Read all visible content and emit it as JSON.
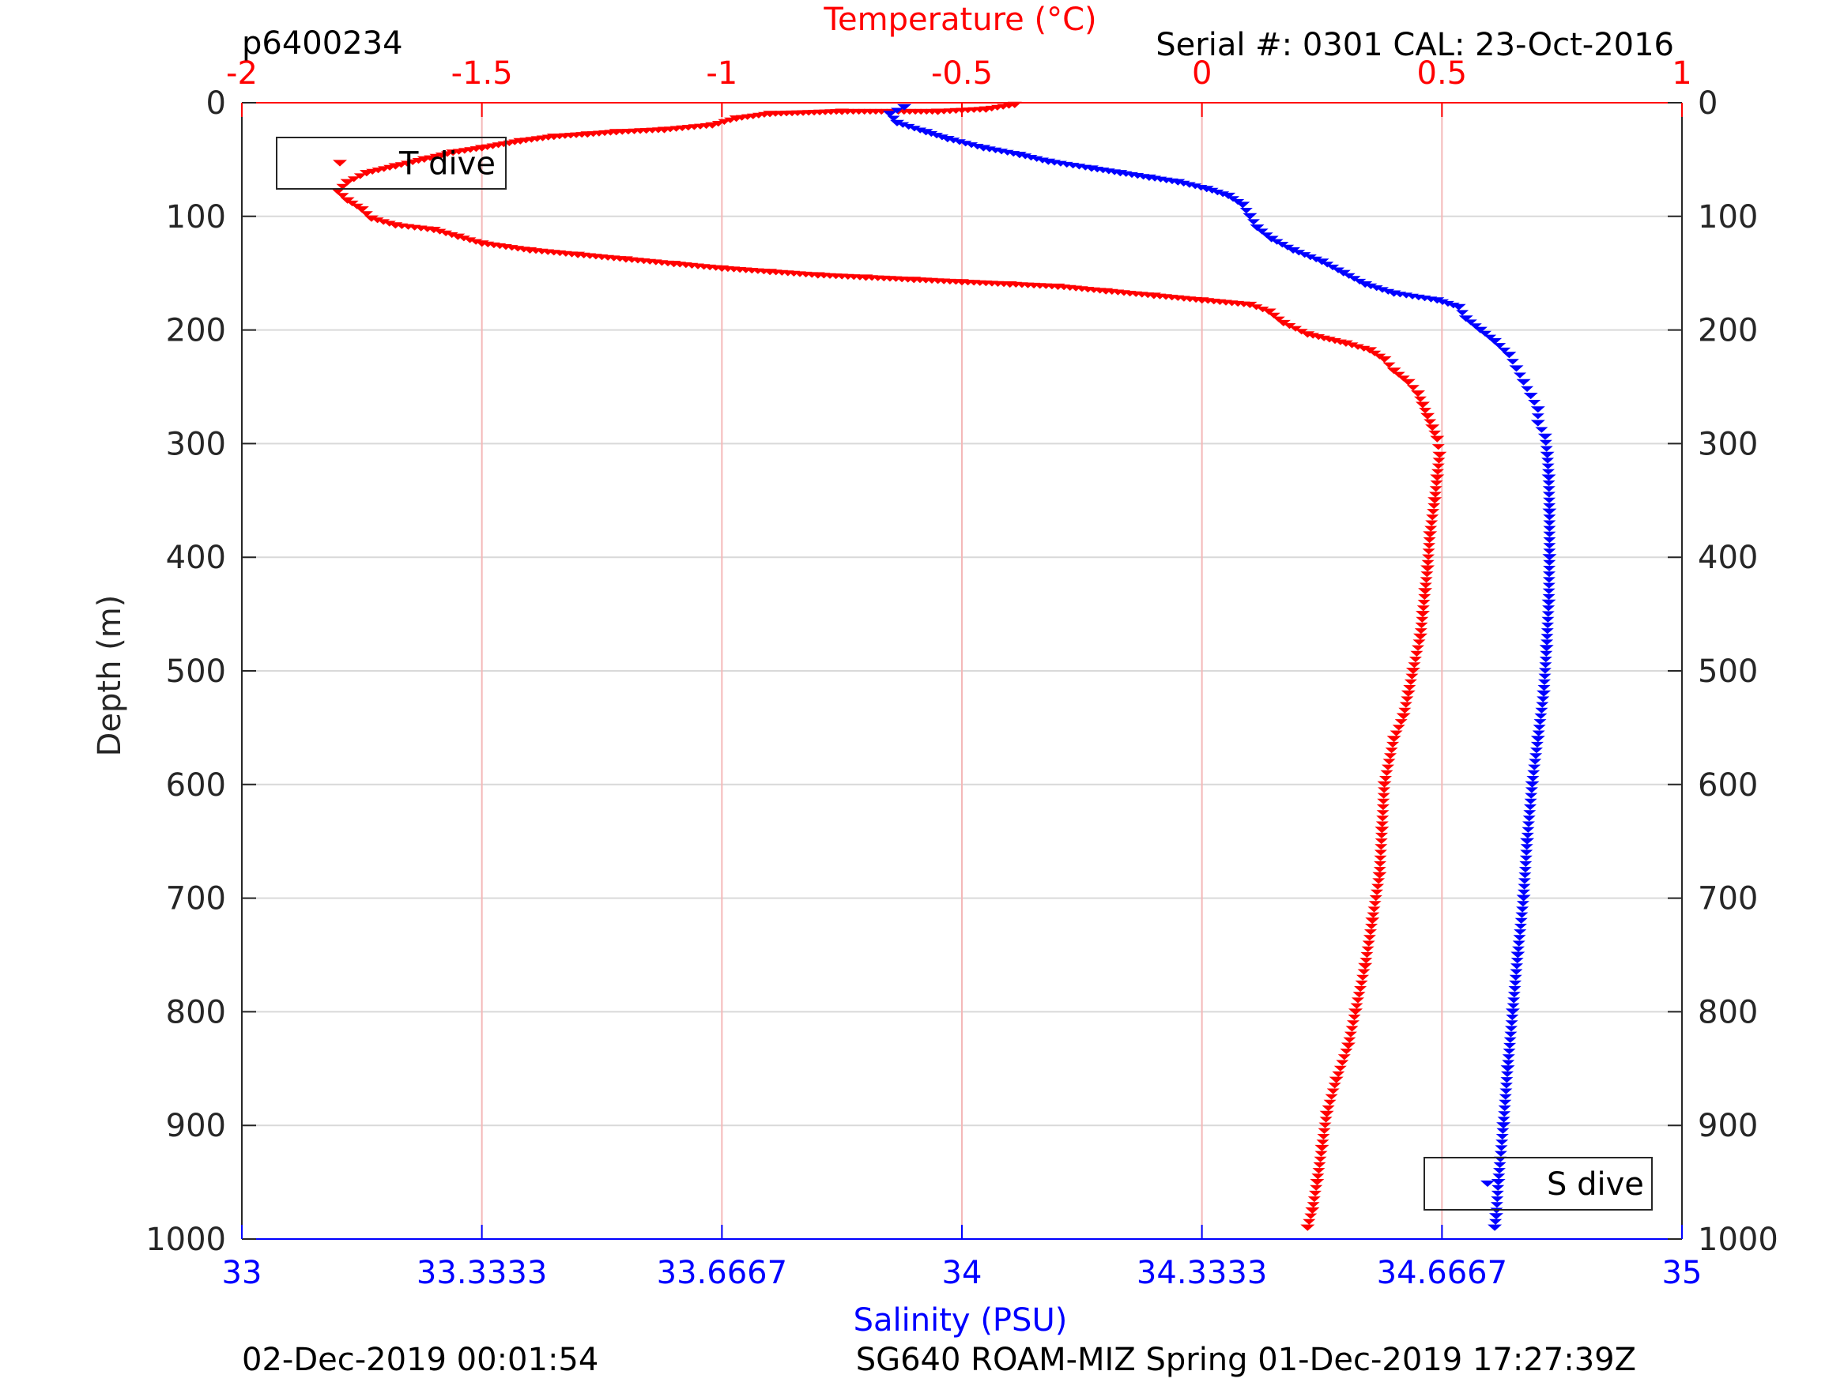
{
  "header": {
    "left_id": "p6400234",
    "right_info": "Serial #: 0301  CAL: 23-Oct-2016"
  },
  "footer": {
    "left_timestamp": "02-Dec-2019 00:01:54",
    "right_mission": "SG640 ROAM-MIZ Spring 01-Dec-2019 17:27:39Z"
  },
  "colors": {
    "temperature": "#ff0000",
    "salinity": "#0000ff",
    "axes": "#262626",
    "grid": "#d9d9d9",
    "grid_top": "#f4b8b8"
  },
  "chart_data": {
    "type": "scatter",
    "marker": "downward-triangle",
    "grid": true,
    "y_axis": {
      "label": "Depth (m)",
      "lim": [
        0,
        1000
      ],
      "reversed": true,
      "ticks": [
        0,
        100,
        200,
        300,
        400,
        500,
        600,
        700,
        800,
        900,
        1000
      ],
      "tick_labels": [
        "0",
        "100",
        "200",
        "300",
        "400",
        "500",
        "600",
        "700",
        "800",
        "900",
        "1000"
      ]
    },
    "x_axis_top": {
      "label": "Temperature (°C)",
      "lim": [
        -2,
        1
      ],
      "ticks": [
        -2,
        -1.5,
        -1,
        -0.5,
        0,
        0.5,
        1
      ],
      "tick_labels": [
        "-2",
        "-1.5",
        "-1",
        "-0.5",
        "0",
        "0.5",
        "1"
      ]
    },
    "x_axis_bottom": {
      "label": "Salinity (PSU)",
      "lim": [
        33,
        35
      ],
      "ticks": [
        33,
        33.3333,
        33.6667,
        34,
        34.3333,
        34.6667,
        35
      ],
      "tick_labels": [
        "33",
        "33.3333",
        "33.6667",
        "34",
        "34.3333",
        "34.6667",
        "35"
      ]
    },
    "legends": [
      {
        "label": "T dive",
        "series": "temperature",
        "placement": "top-left"
      },
      {
        "label": "S dive",
        "series": "salinity",
        "placement": "bottom-right"
      }
    ],
    "series": [
      {
        "key": "temperature",
        "axis": "top",
        "points": [
          [
            -0.39,
            2
          ],
          [
            -0.45,
            6
          ],
          [
            -0.55,
            8
          ],
          [
            -0.75,
            8
          ],
          [
            -0.9,
            10
          ],
          [
            -0.97,
            14
          ],
          [
            -1.02,
            20
          ],
          [
            -1.12,
            24
          ],
          [
            -1.22,
            26
          ],
          [
            -1.28,
            28
          ],
          [
            -1.35,
            30
          ],
          [
            -1.42,
            34
          ],
          [
            -1.5,
            40
          ],
          [
            -1.56,
            44
          ],
          [
            -1.62,
            50
          ],
          [
            -1.68,
            56
          ],
          [
            -1.74,
            62
          ],
          [
            -1.78,
            70
          ],
          [
            -1.8,
            78
          ],
          [
            -1.78,
            86
          ],
          [
            -1.75,
            94
          ],
          [
            -1.73,
            102
          ],
          [
            -1.68,
            108
          ],
          [
            -1.6,
            112
          ],
          [
            -1.55,
            118
          ],
          [
            -1.5,
            124
          ],
          [
            -1.4,
            130
          ],
          [
            -1.3,
            134
          ],
          [
            -1.2,
            138
          ],
          [
            -1.1,
            142
          ],
          [
            -1.0,
            146
          ],
          [
            -0.9,
            149
          ],
          [
            -0.8,
            152
          ],
          [
            -0.7,
            154
          ],
          [
            -0.6,
            156
          ],
          [
            -0.5,
            158
          ],
          [
            -0.4,
            160
          ],
          [
            -0.3,
            162
          ],
          [
            -0.2,
            166
          ],
          [
            -0.1,
            170
          ],
          [
            0.0,
            174
          ],
          [
            0.1,
            178
          ],
          [
            0.14,
            184
          ],
          [
            0.17,
            194
          ],
          [
            0.22,
            204
          ],
          [
            0.3,
            212
          ],
          [
            0.35,
            218
          ],
          [
            0.38,
            226
          ],
          [
            0.4,
            236
          ],
          [
            0.43,
            246
          ],
          [
            0.45,
            256
          ],
          [
            0.46,
            266
          ],
          [
            0.47,
            276
          ],
          [
            0.48,
            286
          ],
          [
            0.49,
            296
          ],
          [
            0.495,
            310
          ],
          [
            0.49,
            330
          ],
          [
            0.485,
            350
          ],
          [
            0.475,
            380
          ],
          [
            0.47,
            410
          ],
          [
            0.465,
            430
          ],
          [
            0.46,
            450
          ],
          [
            0.455,
            470
          ],
          [
            0.44,
            500
          ],
          [
            0.43,
            520
          ],
          [
            0.42,
            540
          ],
          [
            0.4,
            560
          ],
          [
            0.38,
            600
          ],
          [
            0.375,
            640
          ],
          [
            0.37,
            680
          ],
          [
            0.355,
            720
          ],
          [
            0.34,
            760
          ],
          [
            0.32,
            800
          ],
          [
            0.305,
            830
          ],
          [
            0.28,
            860
          ],
          [
            0.26,
            890
          ],
          [
            0.25,
            920
          ],
          [
            0.24,
            950
          ],
          [
            0.23,
            975
          ],
          [
            0.22,
            990
          ]
        ]
      },
      {
        "key": "salinity",
        "axis": "bottom",
        "points": [
          [
            33.92,
            4
          ],
          [
            33.9,
            10
          ],
          [
            33.91,
            18
          ],
          [
            33.95,
            26
          ],
          [
            33.98,
            32
          ],
          [
            34.03,
            40
          ],
          [
            34.08,
            46
          ],
          [
            34.12,
            52
          ],
          [
            34.18,
            58
          ],
          [
            34.22,
            62
          ],
          [
            34.26,
            66
          ],
          [
            34.3,
            70
          ],
          [
            34.34,
            76
          ],
          [
            34.37,
            82
          ],
          [
            34.39,
            90
          ],
          [
            34.4,
            100
          ],
          [
            34.41,
            110
          ],
          [
            34.43,
            120
          ],
          [
            34.46,
            130
          ],
          [
            34.5,
            140
          ],
          [
            34.53,
            150
          ],
          [
            34.56,
            160
          ],
          [
            34.6,
            168
          ],
          [
            34.66,
            174
          ],
          [
            34.69,
            180
          ],
          [
            34.7,
            190
          ],
          [
            34.72,
            200
          ],
          [
            34.74,
            210
          ],
          [
            34.76,
            222
          ],
          [
            34.77,
            234
          ],
          [
            34.78,
            246
          ],
          [
            34.79,
            258
          ],
          [
            34.8,
            270
          ],
          [
            34.8,
            282
          ],
          [
            34.81,
            294
          ],
          [
            34.813,
            310
          ],
          [
            34.815,
            330
          ],
          [
            34.816,
            360
          ],
          [
            34.816,
            400
          ],
          [
            34.815,
            440
          ],
          [
            34.812,
            480
          ],
          [
            34.808,
            520
          ],
          [
            34.8,
            560
          ],
          [
            34.792,
            600
          ],
          [
            34.785,
            650
          ],
          [
            34.78,
            700
          ],
          [
            34.772,
            750
          ],
          [
            34.765,
            800
          ],
          [
            34.758,
            850
          ],
          [
            34.752,
            900
          ],
          [
            34.745,
            950
          ],
          [
            34.742,
            980
          ],
          [
            34.74,
            990
          ]
        ]
      }
    ]
  }
}
